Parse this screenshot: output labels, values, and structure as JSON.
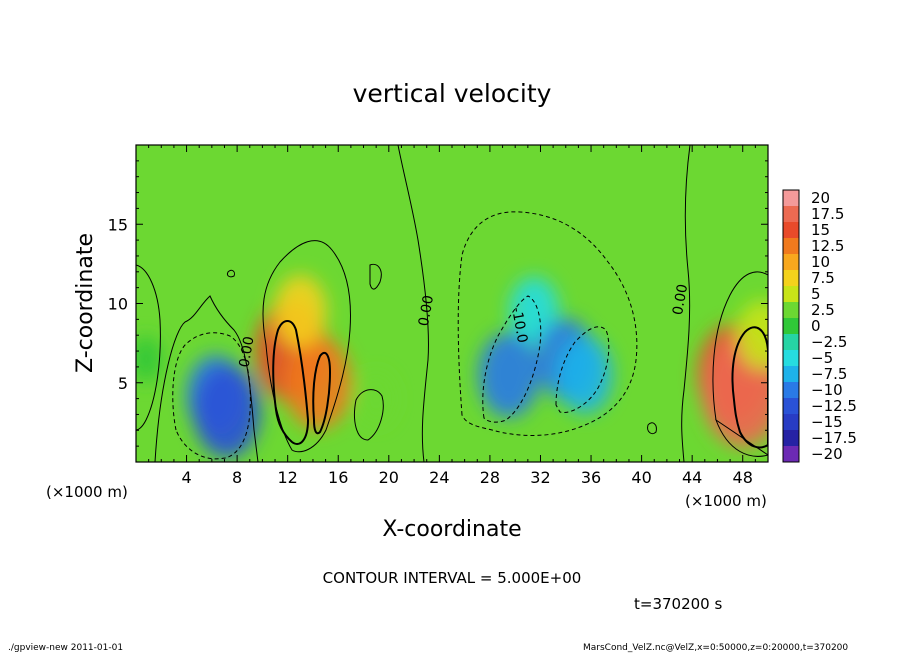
{
  "chart_data": {
    "type": "heatmap",
    "title": "vertical velocity",
    "xlabel": "X-coordinate",
    "ylabel": "Z-coordinate",
    "x_unit_label": "(×1000 m)",
    "xlim": [
      0,
      50
    ],
    "ylim": [
      0,
      20
    ],
    "xticks": [
      4,
      8,
      12,
      16,
      20,
      24,
      28,
      32,
      36,
      40,
      44,
      48
    ],
    "yticks": [
      5,
      10,
      15
    ],
    "colorbar": {
      "levels": [
        "20",
        "17.5",
        "15",
        "12.5",
        "10",
        "7.5",
        "5",
        "2.5",
        "0",
        "−2.5",
        "−5",
        "−7.5",
        "−10",
        "−12.5",
        "−15",
        "−17.5",
        "−20"
      ],
      "colors": [
        "#f49a9a",
        "#ec6a52",
        "#e84a2a",
        "#f07a1e",
        "#f8a81e",
        "#f4d21c",
        "#c8e418",
        "#6cd832",
        "#30c838",
        "#26d4a4",
        "#26dce0",
        "#1eb2ea",
        "#2a7ae6",
        "#2a52d6",
        "#283cc4",
        "#2622a4",
        "#6c2ab4"
      ]
    },
    "contour_labels": [
      "0.00",
      "0.00",
      "-10.0",
      "0.00"
    ],
    "blobs": [
      {
        "x": 0.8,
        "z": 6.5,
        "w": -0.2
      },
      {
        "x": 6.3,
        "z": 4.2,
        "w": -9
      },
      {
        "x": 7.2,
        "z": 3.2,
        "w": -12
      },
      {
        "x": 12.3,
        "z": 7.0,
        "w": 14
      },
      {
        "x": 14.4,
        "z": 5.0,
        "w": 12
      },
      {
        "x": 13.0,
        "z": 9.5,
        "w": 7
      },
      {
        "x": 19.0,
        "z": 4.0,
        "w": 2
      },
      {
        "x": 31.5,
        "z": 9.5,
        "w": -6
      },
      {
        "x": 29.5,
        "z": 5.5,
        "w": -10
      },
      {
        "x": 34.0,
        "z": 6.5,
        "w": -9
      },
      {
        "x": 35.5,
        "z": 5.5,
        "w": -8
      },
      {
        "x": 47.3,
        "z": 5.5,
        "w": 14
      },
      {
        "x": 48.0,
        "z": 4.5,
        "w": 17
      },
      {
        "x": 49.5,
        "z": 8.0,
        "w": 6
      }
    ],
    "contour_interval_text": "CONTOUR INTERVAL = 5.000E+00",
    "time_text": "t=370200  s"
  },
  "footer": {
    "left": "./gpview-new   2011-01-01",
    "right": "MarsCond_VelZ.nc@VelZ,x=0:50000,z=0:20000,t=370200"
  }
}
